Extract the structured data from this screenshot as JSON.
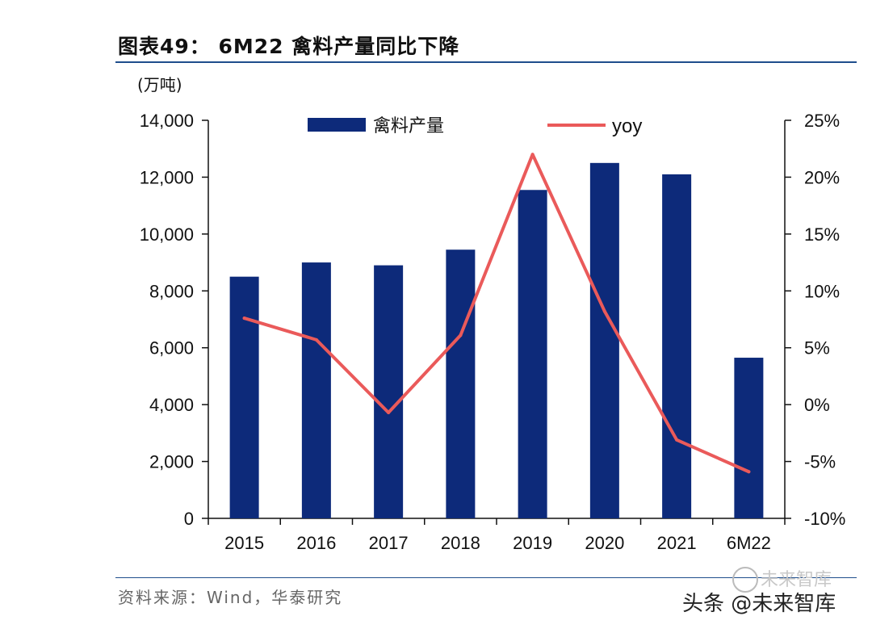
{
  "title": "图表49： 6M22 禽料产量同比下降",
  "source": "资料来源：Wind，华泰研究",
  "watermark": {
    "text": "头条 @未来智库",
    "faint": "未来智库"
  },
  "colors": {
    "bar": "#0d2a7a",
    "line": "#ea5a5a",
    "rule": "#1f4e8c"
  },
  "chart_data": {
    "type": "bar+line",
    "categories": [
      "2015",
      "2016",
      "2017",
      "2018",
      "2019",
      "2020",
      "2021",
      "6M22"
    ],
    "series": [
      {
        "name": "禽料产量",
        "type": "bar",
        "axis": "left",
        "values": [
          8500,
          9000,
          8900,
          9450,
          11550,
          12500,
          12100,
          5650
        ]
      },
      {
        "name": "yoy",
        "type": "line",
        "axis": "right",
        "values": [
          7.6,
          5.7,
          -0.7,
          6.1,
          22.0,
          8.2,
          -3.1,
          -5.9
        ]
      }
    ],
    "left_axis": {
      "label": "(万吨)",
      "min": 0,
      "max": 14000,
      "ticks": [
        "0",
        "2,000",
        "4,000",
        "6,000",
        "8,000",
        "10,000",
        "12,000",
        "14,000"
      ]
    },
    "right_axis": {
      "min": -10,
      "max": 25,
      "ticks": [
        "-10%",
        "-5%",
        "0%",
        "5%",
        "10%",
        "15%",
        "20%",
        "25%"
      ]
    },
    "legend": [
      "禽料产量",
      "yoy"
    ]
  }
}
